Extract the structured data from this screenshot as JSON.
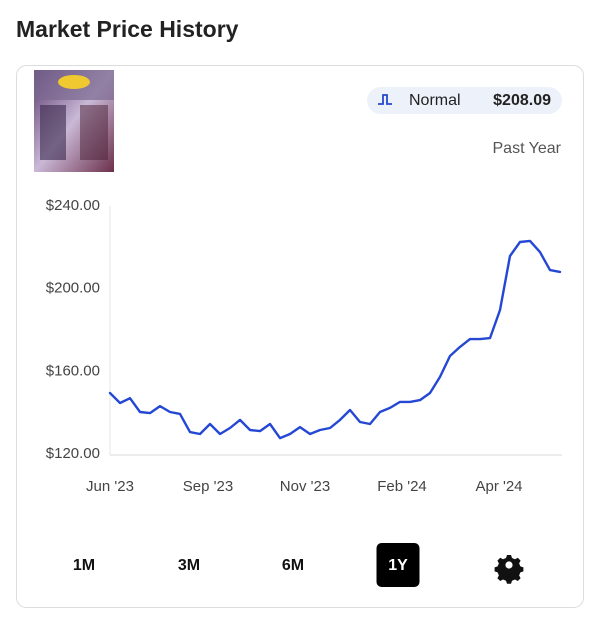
{
  "header": {
    "title": "Market Price History"
  },
  "badge": {
    "label": "Normal",
    "price": "$208.09"
  },
  "period_label": "Past Year",
  "chart_data": {
    "type": "line",
    "color": "#2448d4",
    "x": [
      0,
      1,
      2,
      3,
      4,
      5,
      6,
      7,
      8,
      9,
      10,
      11,
      12,
      13,
      14,
      15,
      16,
      17,
      18,
      19,
      20,
      21,
      22,
      23,
      24,
      25,
      26,
      27,
      28,
      29,
      30,
      31,
      32,
      33,
      34,
      35,
      36,
      37,
      38,
      39,
      40,
      41,
      42,
      43,
      44,
      45
    ],
    "values": [
      149.5,
      144.7,
      147,
      140.3,
      139.8,
      143.2,
      140.3,
      139.4,
      130.6,
      129.7,
      134.5,
      129.7,
      132.6,
      136.5,
      131.6,
      131.1,
      134.5,
      127.7,
      129.7,
      133,
      129.7,
      131.6,
      132.6,
      136.5,
      141.3,
      135.5,
      134.5,
      140.3,
      142.3,
      145.2,
      145.2,
      146.1,
      149.5,
      157.3,
      167.4,
      171.8,
      175.6,
      175.6,
      176.1,
      189.7,
      215.8,
      222.6,
      223.1,
      217.7,
      209,
      208.1
    ],
    "xlim": [
      0,
      45
    ],
    "xticks": [
      {
        "value": 0,
        "label": "Jun '23"
      },
      {
        "value": 9.8,
        "label": "Sep '23"
      },
      {
        "value": 19.5,
        "label": "Nov '23"
      },
      {
        "value": 29.2,
        "label": "Feb '24"
      },
      {
        "value": 38.9,
        "label": "Apr '24"
      }
    ],
    "ylim": [
      120,
      240
    ],
    "yticks": [
      {
        "value": 120,
        "label": "$120.00"
      },
      {
        "value": 160,
        "label": "$160.00"
      },
      {
        "value": 200,
        "label": "$200.00"
      },
      {
        "value": 240,
        "label": "$240.00"
      }
    ]
  },
  "range_buttons": [
    "1M",
    "3M",
    "6M",
    "1Y"
  ],
  "selected": 3
}
